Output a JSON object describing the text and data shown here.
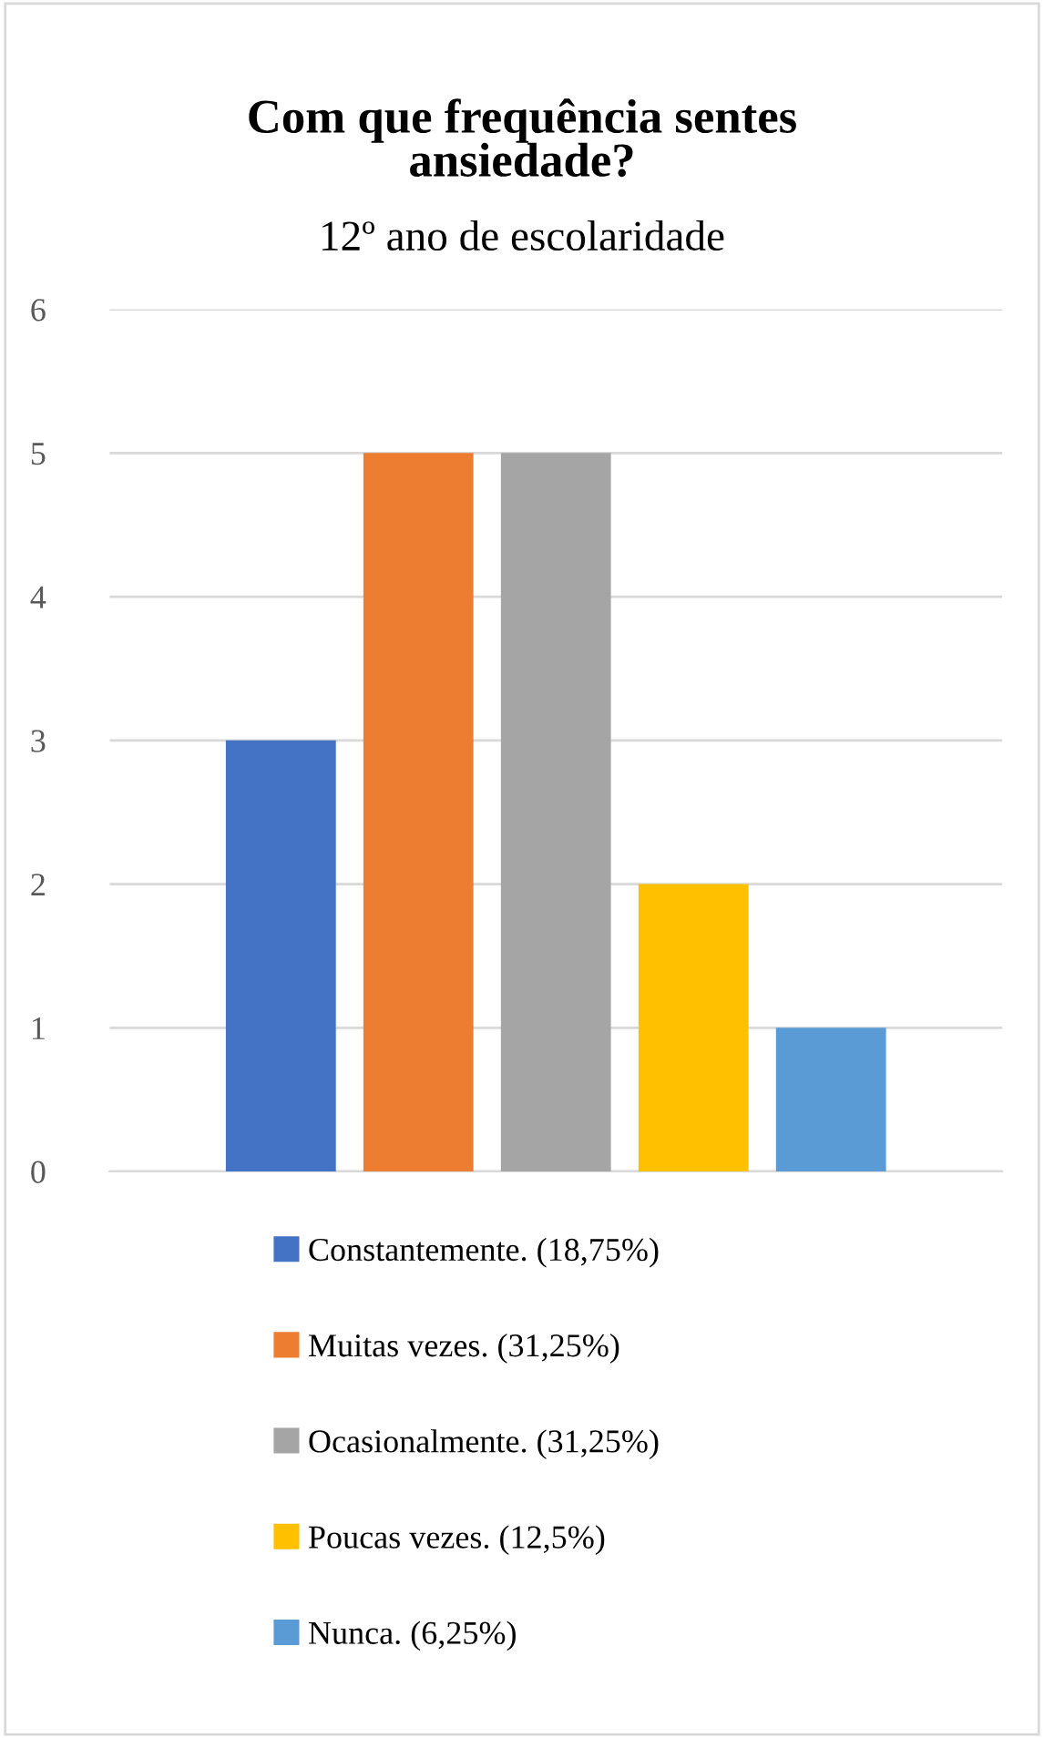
{
  "chart_data": {
    "type": "bar",
    "title": "Com que frequência sentes\nansiedade?",
    "subtitle": "12º ano de escolaridade",
    "categories": [
      null
    ],
    "series": [
      {
        "name": "Constantemente. (18,75%)",
        "color": "#4472c4",
        "values": [
          3
        ]
      },
      {
        "name": "Muitas vezes. (31,25%)",
        "color": "#ed7d31",
        "values": [
          5
        ]
      },
      {
        "name": "Ocasionalmente. (31,25%)",
        "color": "#a5a5a5",
        "values": [
          5
        ]
      },
      {
        "name": "Poucas vezes. (12,5%)",
        "color": "#ffc000",
        "values": [
          2
        ]
      },
      {
        "name": "Nunca. (6,25%)",
        "color": "#5b9bd5",
        "values": [
          1
        ]
      }
    ],
    "ylim": [
      0,
      6
    ],
    "yticks": [
      0,
      1,
      2,
      3,
      4,
      5,
      6
    ],
    "grid": "y",
    "legend": "bottom",
    "tick_labels": "y"
  }
}
